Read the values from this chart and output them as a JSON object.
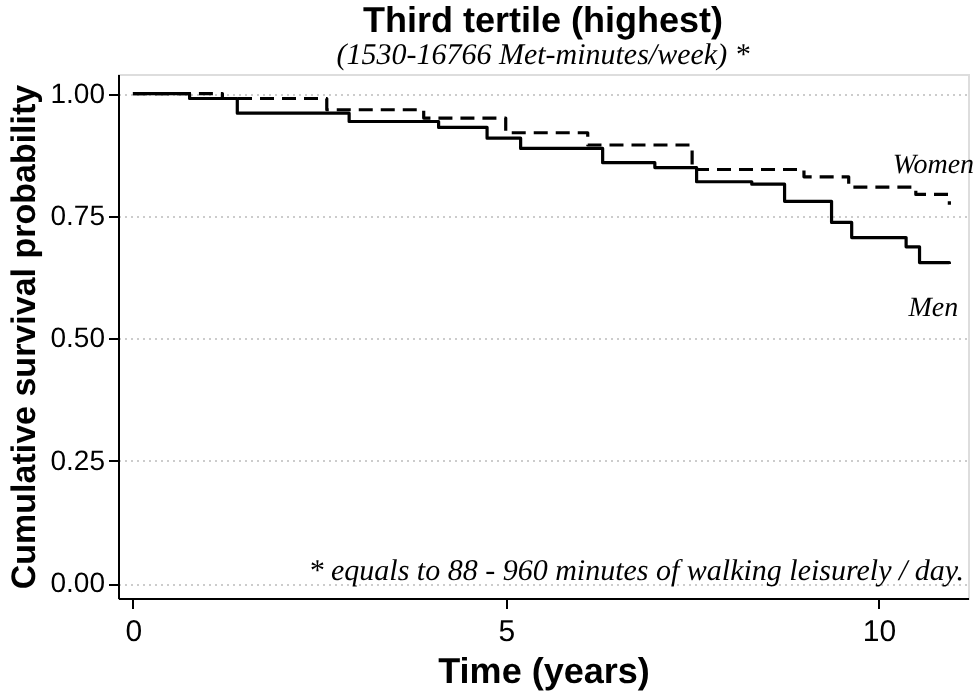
{
  "chart_data": {
    "type": "step",
    "title": "Third tertile (highest)",
    "subtitle": "(1530-16766 Met-minutes/week) *",
    "xlabel": "Time (years)",
    "ylabel": "Cumulative survival probability",
    "annotations": [
      "* equals to 88 - 960 minutes of walking leisurely / day."
    ],
    "xlim": [
      -0.2,
      11.2
    ],
    "xticks": [
      0,
      5,
      10
    ],
    "ylim": [
      -0.03,
      1.04
    ],
    "yticks": [
      {
        "value": 0,
        "label": "0.00"
      },
      {
        "value": 0.25,
        "label": "0.25"
      },
      {
        "value": 0.5,
        "label": "0.50"
      },
      {
        "value": 0.75,
        "label": "0.75"
      },
      {
        "value": 1,
        "label": "1.00"
      }
    ],
    "grid": "y",
    "legend": false,
    "series": [
      {
        "name": "Women",
        "color": "#000000",
        "line_style": "dashed",
        "x": [
          0,
          1.2,
          2.6,
          3.9,
          5.0,
          6.1,
          7.5,
          9.0,
          9.6,
          10.5,
          10.95
        ],
        "values": [
          1.0,
          0.99,
          0.967,
          0.95,
          0.92,
          0.895,
          0.845,
          0.83,
          0.809,
          0.794,
          0.773
        ]
      },
      {
        "name": "Men",
        "color": "#000000",
        "line_style": "solid",
        "x": [
          0,
          0.76,
          1.4,
          2.9,
          4.1,
          4.75,
          5.2,
          6.3,
          7.0,
          7.56,
          8.3,
          8.74,
          9.37,
          9.64,
          10.37,
          10.55,
          10.95
        ],
        "values": [
          1.0,
          0.99,
          0.96,
          0.943,
          0.931,
          0.909,
          0.888,
          0.859,
          0.849,
          0.82,
          0.815,
          0.78,
          0.737,
          0.706,
          0.687,
          0.655,
          0.652
        ]
      }
    ]
  }
}
